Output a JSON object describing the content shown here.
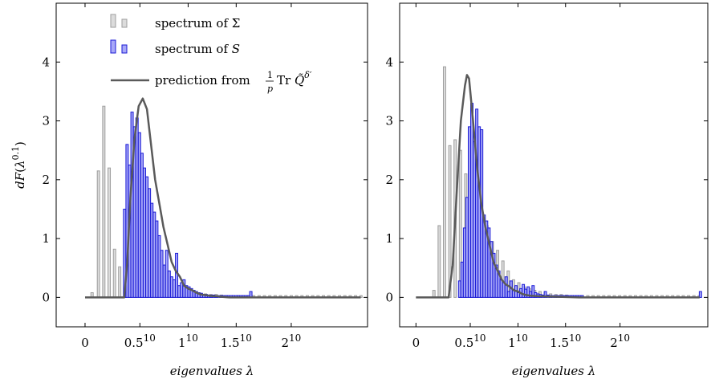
{
  "chart_data": [
    {
      "type": "bar",
      "panel": "left",
      "xlabel": "eigenvalues λ",
      "ylabel": "dF(λ^0.1)",
      "xlim": [
        -0.14,
        1.37
      ],
      "ylim": [
        -0.5,
        5.0
      ],
      "x_ticks": [
        {
          "v": 0.0,
          "label": "0"
        },
        {
          "v": 0.266,
          "label": "0.5",
          "sup": "10"
        },
        {
          "v": 0.5,
          "label": "1",
          "sup": "10"
        },
        {
          "v": 0.733,
          "label": "1.5",
          "sup": "10"
        },
        {
          "v": 1.0,
          "label": "2",
          "sup": "10"
        }
      ],
      "y_ticks": [
        0,
        1,
        2,
        3,
        4
      ],
      "legend": {
        "position": "top-left",
        "entries": [
          {
            "label": "spectrum of Σ",
            "kind": "bars",
            "color": "#9e9e9e",
            "fill": "#dcdcdc"
          },
          {
            "label": "spectrum of ",
            "math": "S",
            "kind": "bars",
            "color": "#1a1ad6",
            "fill": "#a8a8f8"
          },
          {
            "label": "prediction from ",
            "math": "1/p Tr Q̃^δ′",
            "kind": "line",
            "color": "#5a5a5a"
          }
        ]
      },
      "series": [
        {
          "name": "spectrum of Σ",
          "kind": "bars",
          "bar_width": 0.0115,
          "x": [
            0.034,
            0.065,
            0.091,
            0.117,
            0.143,
            0.168,
            0.194,
            0.22,
            0.246,
            0.272,
            0.298,
            0.324,
            0.35,
            0.376,
            0.402,
            0.428,
            0.454,
            0.48,
            0.506,
            0.532,
            0.558,
            0.584,
            0.61,
            0.636,
            0.662,
            0.688,
            0.714,
            0.74,
            0.766,
            0.792,
            0.818,
            0.844,
            0.87,
            0.896,
            0.922,
            0.948,
            0.974,
            1.0,
            1.026,
            1.052,
            1.078,
            1.104,
            1.13,
            1.156,
            1.182,
            1.208,
            1.234,
            1.26,
            1.286,
            1.312,
            1.338
          ],
          "values": [
            0.08,
            2.15,
            3.25,
            2.2,
            0.82,
            0.52,
            0.4,
            0.35,
            0.28,
            0.22,
            0.18,
            0.3,
            0.25,
            0.2,
            0.18,
            0.14,
            0.12,
            0.1,
            0.09,
            0.08,
            0.07,
            0.06,
            0.05,
            0.05,
            0.04,
            0.03,
            0.03,
            0.03,
            0.03,
            0.03,
            0.03,
            0.03,
            0.03,
            0.03,
            0.03,
            0.03,
            0.03,
            0.03,
            0.03,
            0.03,
            0.03,
            0.03,
            0.03,
            0.03,
            0.03,
            0.03,
            0.03,
            0.03,
            0.03,
            0.03,
            0.03
          ]
        },
        {
          "name": "spectrum of S",
          "kind": "bars",
          "bar_width": 0.0115,
          "x": [
            0.192,
            0.204,
            0.216,
            0.228,
            0.24,
            0.252,
            0.264,
            0.276,
            0.288,
            0.3,
            0.312,
            0.324,
            0.336,
            0.348,
            0.36,
            0.372,
            0.384,
            0.396,
            0.408,
            0.42,
            0.432,
            0.444,
            0.456,
            0.468,
            0.48,
            0.492,
            0.504,
            0.516,
            0.528,
            0.54,
            0.552,
            0.564,
            0.576,
            0.588,
            0.6,
            0.612,
            0.624,
            0.636,
            0.648,
            0.66,
            0.672,
            0.684,
            0.696,
            0.708,
            0.72,
            0.732,
            0.744,
            0.756,
            0.768,
            0.78,
            0.792,
            0.804
          ],
          "values": [
            1.5,
            2.6,
            2.25,
            3.15,
            2.9,
            3.05,
            2.8,
            2.45,
            2.2,
            2.05,
            1.85,
            1.6,
            1.45,
            1.3,
            1.05,
            0.8,
            0.55,
            0.8,
            0.45,
            0.35,
            0.3,
            0.75,
            0.2,
            0.25,
            0.3,
            0.2,
            0.18,
            0.15,
            0.12,
            0.1,
            0.08,
            0.07,
            0.05,
            0.05,
            0.04,
            0.04,
            0.04,
            0.03,
            0.03,
            0.03,
            0.03,
            0.03,
            0.03,
            0.03,
            0.03,
            0.03,
            0.03,
            0.03,
            0.03,
            0.03,
            0.03,
            0.1
          ]
        },
        {
          "name": "prediction from 1/p Tr Q̃^δ′",
          "kind": "line",
          "x": [
            0.0,
            0.19,
            0.205,
            0.22,
            0.24,
            0.26,
            0.28,
            0.3,
            0.32,
            0.34,
            0.36,
            0.38,
            0.4,
            0.42,
            0.44,
            0.46,
            0.48,
            0.5,
            0.52,
            0.54,
            0.56,
            0.58,
            0.6,
            0.62,
            0.64,
            0.66,
            0.7,
            0.8,
            1.0,
            1.2,
            1.337
          ],
          "values": [
            0.0,
            0.0,
            0.6,
            1.7,
            2.7,
            3.25,
            3.38,
            3.2,
            2.6,
            2.0,
            1.6,
            1.2,
            0.9,
            0.6,
            0.45,
            0.35,
            0.2,
            0.15,
            0.12,
            0.08,
            0.05,
            0.04,
            0.03,
            0.02,
            0.02,
            0.01,
            0.0,
            0.0,
            0.0,
            0.0,
            0.0
          ]
        }
      ]
    },
    {
      "type": "bar",
      "panel": "right",
      "xlabel": "eigenvalues λ",
      "xlim": [
        -0.08,
        1.43
      ],
      "ylim": [
        -0.5,
        5.0
      ],
      "x_ticks": [
        {
          "v": 0.0,
          "label": "0"
        },
        {
          "v": 0.266,
          "label": "0.5",
          "sup": "10"
        },
        {
          "v": 0.5,
          "label": "1",
          "sup": "10"
        },
        {
          "v": 0.733,
          "label": "1.5",
          "sup": "10"
        },
        {
          "v": 1.0,
          "label": "2",
          "sup": "10"
        }
      ],
      "y_ticks": [
        0,
        1,
        2,
        3,
        4
      ],
      "series": [
        {
          "name": "spectrum of Σ",
          "kind": "bars",
          "bar_width": 0.0115,
          "x": [
            0.088,
            0.114,
            0.14,
            0.166,
            0.192,
            0.218,
            0.244,
            0.27,
            0.296,
            0.322,
            0.348,
            0.374,
            0.4,
            0.426,
            0.452,
            0.478,
            0.504,
            0.53,
            0.556,
            0.582,
            0.608,
            0.634,
            0.66,
            0.686,
            0.712,
            0.738,
            0.764,
            0.79,
            0.816,
            0.842,
            0.868,
            0.894,
            0.92,
            0.946,
            0.972,
            0.998,
            1.024,
            1.05,
            1.076,
            1.102,
            1.128,
            1.154,
            1.18,
            1.206,
            1.232,
            1.258,
            1.284,
            1.31,
            1.336,
            1.362,
            1.388
          ],
          "values": [
            0.12,
            1.22,
            3.92,
            2.58,
            2.68,
            2.5,
            2.1,
            1.85,
            1.62,
            1.45,
            1.22,
            0.95,
            0.8,
            0.62,
            0.45,
            0.3,
            0.25,
            0.18,
            0.15,
            0.12,
            0.1,
            0.08,
            0.06,
            0.05,
            0.05,
            0.04,
            0.03,
            0.03,
            0.03,
            0.03,
            0.03,
            0.03,
            0.03,
            0.03,
            0.03,
            0.03,
            0.03,
            0.03,
            0.03,
            0.03,
            0.03,
            0.03,
            0.03,
            0.03,
            0.03,
            0.03,
            0.03,
            0.03,
            0.03,
            0.03,
            0.03
          ]
        },
        {
          "name": "spectrum of S",
          "kind": "bars",
          "bar_width": 0.0115,
          "x": [
            0.214,
            0.226,
            0.238,
            0.25,
            0.262,
            0.274,
            0.286,
            0.298,
            0.31,
            0.322,
            0.334,
            0.346,
            0.358,
            0.37,
            0.382,
            0.394,
            0.406,
            0.418,
            0.43,
            0.442,
            0.454,
            0.466,
            0.478,
            0.49,
            0.502,
            0.514,
            0.526,
            0.538,
            0.55,
            0.562,
            0.574,
            0.586,
            0.598,
            0.61,
            0.622,
            0.634,
            0.646,
            0.658,
            0.67,
            0.682,
            0.694,
            0.706,
            0.718,
            0.73,
            0.742,
            0.754,
            0.766,
            0.778,
            0.79,
            0.802,
            0.814,
            1.394
          ],
          "values": [
            0.28,
            0.6,
            1.18,
            1.7,
            2.9,
            3.3,
            2.65,
            3.2,
            2.9,
            2.85,
            1.4,
            1.3,
            1.18,
            0.95,
            0.75,
            0.55,
            0.45,
            0.3,
            0.25,
            0.35,
            0.1,
            0.28,
            0.12,
            0.2,
            0.08,
            0.15,
            0.22,
            0.14,
            0.18,
            0.1,
            0.2,
            0.08,
            0.06,
            0.05,
            0.04,
            0.1,
            0.04,
            0.03,
            0.03,
            0.03,
            0.03,
            0.03,
            0.03,
            0.03,
            0.03,
            0.03,
            0.03,
            0.03,
            0.03,
            0.03,
            0.03,
            0.1
          ]
        },
        {
          "name": "prediction from 1/p Tr Q̃^δ′",
          "kind": "line",
          "x": [
            0.0,
            0.16,
            0.18,
            0.2,
            0.22,
            0.24,
            0.25,
            0.26,
            0.28,
            0.3,
            0.32,
            0.34,
            0.36,
            0.38,
            0.4,
            0.42,
            0.44,
            0.46,
            0.48,
            0.5,
            0.52,
            0.54,
            0.56,
            0.6,
            0.7,
            0.8,
            1.0,
            1.2,
            1.39
          ],
          "values": [
            0.0,
            0.0,
            0.55,
            1.8,
            3.0,
            3.6,
            3.78,
            3.72,
            3.0,
            2.2,
            1.6,
            1.2,
            0.9,
            0.6,
            0.45,
            0.3,
            0.22,
            0.18,
            0.12,
            0.1,
            0.06,
            0.04,
            0.03,
            0.02,
            0.01,
            0.0,
            0.0,
            0.0,
            0.0
          ]
        }
      ]
    }
  ]
}
